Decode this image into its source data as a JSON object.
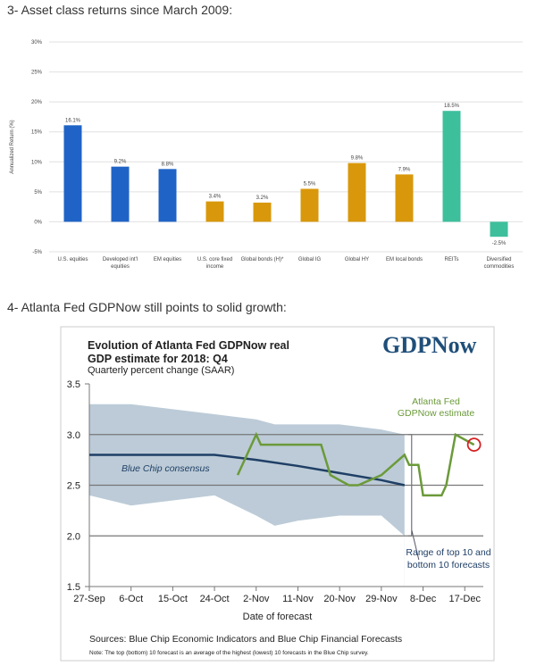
{
  "headings": [
    "3-  Asset class returns since March 2009:",
    "4-  Atlanta Fed GDPNow still points to solid growth:"
  ],
  "chart_data": [
    {
      "type": "bar",
      "y_label": "Annualized Return (%)",
      "categories": [
        "U.S. equities",
        "Developed int'l equities",
        "EM equities",
        "U.S. core fixed income",
        "Global bonds (H)*",
        "Global IG",
        "Global HY",
        "EM local bonds",
        "REITs",
        "Diversified commodities"
      ],
      "values": [
        16.1,
        9.2,
        8.8,
        3.4,
        3.2,
        5.5,
        9.8,
        7.9,
        18.5,
        -2.5
      ],
      "value_labels": [
        "16.1%",
        "9.2%",
        "8.8%",
        "3.4%",
        "3.2%",
        "5.5%",
        "9.8%",
        "7.9%",
        "18.5%",
        "-2.5%"
      ],
      "colors": [
        "#1f63c6",
        "#1f63c6",
        "#1f63c6",
        "#d9980b",
        "#d9980b",
        "#d9980b",
        "#d9980b",
        "#d9980b",
        "#3dbf9c",
        "#3dbf9c"
      ],
      "ylim": [
        -5,
        30
      ],
      "yticks": [
        {
          "value": -5,
          "label": "-5%"
        },
        {
          "value": 0,
          "label": "0%"
        },
        {
          "value": 5,
          "label": "5%"
        },
        {
          "value": 10,
          "label": "10%"
        },
        {
          "value": 15,
          "label": "15%"
        },
        {
          "value": 20,
          "label": "20%"
        },
        {
          "value": 25,
          "label": "25%"
        },
        {
          "value": 30,
          "label": "30%"
        }
      ],
      "grid": true
    },
    {
      "type": "line",
      "title": "Evolution of Atlanta Fed GDPNow real GDP estimate for 2018: Q4",
      "subtitle": "Quarterly percent change (SAAR)",
      "logo": "GDPNow",
      "x_label": "Date of forecast",
      "xlim": [
        0,
        85
      ],
      "xticks": [
        {
          "value": 0,
          "label": "27-Sep"
        },
        {
          "value": 9,
          "label": "6-Oct"
        },
        {
          "value": 18,
          "label": "15-Oct"
        },
        {
          "value": 27,
          "label": "24-Oct"
        },
        {
          "value": 36,
          "label": "2-Nov"
        },
        {
          "value": 45,
          "label": "11-Nov"
        },
        {
          "value": 54,
          "label": "20-Nov"
        },
        {
          "value": 63,
          "label": "29-Nov"
        },
        {
          "value": 72,
          "label": "8-Dec"
        },
        {
          "value": 81,
          "label": "17-Dec"
        }
      ],
      "ylim": [
        1.5,
        3.5
      ],
      "yticks": [
        1.5,
        {
          "value": 2,
          "label": "2.0"
        },
        2.5,
        {
          "value": 3,
          "label": "3.0"
        },
        3.5
      ],
      "band": {
        "name": "Range of top 10 and bottom 10 forecasts",
        "color": "#bccbd7",
        "x": [
          0,
          9,
          27,
          36,
          40,
          45,
          54,
          63,
          68
        ],
        "upper": [
          3.3,
          3.3,
          3.2,
          3.15,
          3.1,
          3.1,
          3.1,
          3.05,
          3.0
        ],
        "lower": [
          2.4,
          2.3,
          2.4,
          2.2,
          2.1,
          2.15,
          2.2,
          2.2,
          2.0
        ]
      },
      "series": [
        {
          "name": "Blue Chip consensus",
          "color": "#1f3f66",
          "x": [
            0,
            27,
            36,
            45,
            54,
            63,
            68
          ],
          "values": [
            2.8,
            2.8,
            2.75,
            2.69,
            2.62,
            2.55,
            2.5
          ]
        },
        {
          "name": "Atlanta Fed GDPNow estimate",
          "color": "#6b9a3a",
          "x": [
            32,
            36,
            37,
            50,
            52,
            56,
            58,
            63,
            68,
            69,
            71,
            72,
            76,
            77,
            79,
            83
          ],
          "values": [
            2.6,
            3.0,
            2.9,
            2.9,
            2.6,
            2.5,
            2.5,
            2.6,
            2.8,
            2.7,
            2.7,
            2.4,
            2.4,
            2.5,
            3.0,
            2.9
          ]
        }
      ],
      "grid": true,
      "sources": "Sources:  Blue Chip Economic Indicators and Blue Chip Financial Forecasts",
      "note": "Note:  The top (bottom) 10 forecast is an average of the highest (lowest) 10 forecasts in the Blue Chip survey."
    }
  ]
}
